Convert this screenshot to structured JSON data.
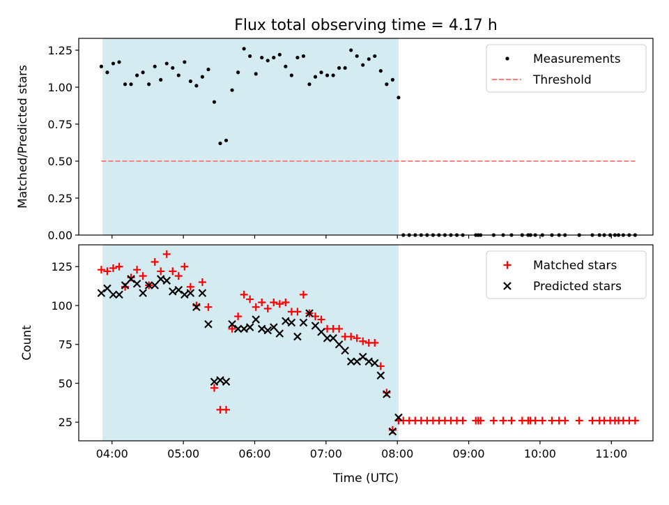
{
  "figure": {
    "title": "Flux total observing time = 4.17 h",
    "xlabel": "Time (UTC)",
    "xticks": [
      "04:00",
      "05:00",
      "06:00",
      "07:00",
      "08:00",
      "09:00",
      "10:00",
      "11:00"
    ],
    "observing_window": {
      "start": "03:52",
      "end": "08:01",
      "color": "#add8e6"
    }
  },
  "chart_data": [
    {
      "type": "scatter",
      "title": "Flux total observing time = 4.17 h",
      "xlabel": "",
      "ylabel": "Matched/Predicted stars",
      "ylim": [
        0,
        1.33
      ],
      "yticks": [
        "0.00",
        "0.25",
        "0.50",
        "0.75",
        "1.00",
        "1.25"
      ],
      "grid": false,
      "legend_position": "upper right",
      "series": [
        {
          "name": "Measurements",
          "marker": "dot",
          "color": "#000000",
          "points": [
            [
              "03:51",
              1.14
            ],
            [
              "03:56",
              1.1
            ],
            [
              "04:01",
              1.16
            ],
            [
              "04:06",
              1.17
            ],
            [
              "04:11",
              1.02
            ],
            [
              "04:16",
              1.02
            ],
            [
              "04:21",
              1.08
            ],
            [
              "04:26",
              1.1
            ],
            [
              "04:31",
              1.02
            ],
            [
              "04:36",
              1.14
            ],
            [
              "04:41",
              1.05
            ],
            [
              "04:46",
              1.16
            ],
            [
              "04:51",
              1.13
            ],
            [
              "04:56",
              1.08
            ],
            [
              "05:01",
              1.17
            ],
            [
              "05:06",
              1.04
            ],
            [
              "05:11",
              1.01
            ],
            [
              "05:16",
              1.07
            ],
            [
              "05:21",
              1.12
            ],
            [
              "05:26",
              0.9
            ],
            [
              "05:31",
              0.62
            ],
            [
              "05:36",
              0.64
            ],
            [
              "05:41",
              0.98
            ],
            [
              "05:46",
              1.1
            ],
            [
              "05:51",
              1.26
            ],
            [
              "05:56",
              1.21
            ],
            [
              "06:01",
              1.09
            ],
            [
              "06:06",
              1.2
            ],
            [
              "06:11",
              1.18
            ],
            [
              "06:16",
              1.2
            ],
            [
              "06:21",
              1.22
            ],
            [
              "06:26",
              1.14
            ],
            [
              "06:31",
              1.08
            ],
            [
              "06:36",
              1.2
            ],
            [
              "06:41",
              1.21
            ],
            [
              "06:46",
              1.02
            ],
            [
              "06:51",
              1.07
            ],
            [
              "06:56",
              1.1
            ],
            [
              "07:01",
              1.08
            ],
            [
              "07:06",
              1.08
            ],
            [
              "07:11",
              1.13
            ],
            [
              "07:16",
              1.13
            ],
            [
              "07:21",
              1.25
            ],
            [
              "07:26",
              1.21
            ],
            [
              "07:31",
              1.15
            ],
            [
              "07:36",
              1.19
            ],
            [
              "07:41",
              1.21
            ],
            [
              "07:46",
              1.11
            ],
            [
              "07:51",
              1.02
            ],
            [
              "07:56",
              1.05
            ],
            [
              "08:01",
              0.93
            ],
            [
              "08:05",
              0
            ],
            [
              "08:10",
              0
            ],
            [
              "08:15",
              0
            ],
            [
              "08:20",
              0
            ],
            [
              "08:25",
              0
            ],
            [
              "08:30",
              0
            ],
            [
              "08:35",
              0
            ],
            [
              "08:40",
              0
            ],
            [
              "08:45",
              0
            ],
            [
              "08:50",
              0
            ],
            [
              "08:55",
              0
            ],
            [
              "09:06",
              0
            ],
            [
              "09:08",
              0
            ],
            [
              "09:10",
              0
            ],
            [
              "09:21",
              0
            ],
            [
              "09:29",
              0
            ],
            [
              "09:36",
              0
            ],
            [
              "09:45",
              0
            ],
            [
              "09:50",
              0
            ],
            [
              "09:52",
              0
            ],
            [
              "09:56",
              0
            ],
            [
              "10:02",
              0
            ],
            [
              "10:10",
              0
            ],
            [
              "10:16",
              0
            ],
            [
              "10:21",
              0
            ],
            [
              "10:33",
              0
            ],
            [
              "10:44",
              0
            ],
            [
              "10:50",
              0
            ],
            [
              "10:54",
              0
            ],
            [
              "10:59",
              0
            ],
            [
              "11:03",
              0
            ],
            [
              "11:06",
              0
            ],
            [
              "11:10",
              0
            ],
            [
              "11:15",
              0
            ],
            [
              "11:20",
              0
            ]
          ]
        },
        {
          "name": "Threshold",
          "marker": "dashed-line",
          "color": "#ff7f7f",
          "points": [
            [
              "03:51",
              0.5
            ],
            [
              "11:20",
              0.5
            ]
          ]
        }
      ]
    },
    {
      "type": "scatter",
      "title": "",
      "xlabel": "Time (UTC)",
      "ylabel": "Count",
      "ylim": [
        13,
        139
      ],
      "yticks": [
        "25",
        "50",
        "75",
        "100",
        "125"
      ],
      "grid": false,
      "legend_position": "upper right",
      "series": [
        {
          "name": "Matched stars",
          "marker": "plus",
          "color": "#ff0000",
          "points": [
            [
              "03:51",
              123
            ],
            [
              "03:56",
              122
            ],
            [
              "04:01",
              124
            ],
            [
              "04:06",
              125
            ],
            [
              "04:11",
              112
            ],
            [
              "04:16",
              118
            ],
            [
              "04:21",
              123
            ],
            [
              "04:26",
              119
            ],
            [
              "04:31",
              113
            ],
            [
              "04:36",
              128
            ],
            [
              "04:41",
              122
            ],
            [
              "04:46",
              133
            ],
            [
              "04:51",
              122
            ],
            [
              "04:56",
              119
            ],
            [
              "05:01",
              125
            ],
            [
              "05:06",
              112
            ],
            [
              "05:11",
              100
            ],
            [
              "05:16",
              115
            ],
            [
              "05:21",
              99
            ],
            [
              "05:26",
              47
            ],
            [
              "05:31",
              33
            ],
            [
              "05:36",
              33
            ],
            [
              "05:41",
              85
            ],
            [
              "05:46",
              93
            ],
            [
              "05:51",
              107
            ],
            [
              "05:56",
              104
            ],
            [
              "06:01",
              99
            ],
            [
              "06:06",
              102
            ],
            [
              "06:11",
              98
            ],
            [
              "06:16",
              102
            ],
            [
              "06:21",
              101
            ],
            [
              "06:26",
              102
            ],
            [
              "06:31",
              96
            ],
            [
              "06:36",
              96
            ],
            [
              "06:41",
              107
            ],
            [
              "06:46",
              95
            ],
            [
              "06:51",
              93
            ],
            [
              "06:56",
              91
            ],
            [
              "07:01",
              85
            ],
            [
              "07:06",
              85
            ],
            [
              "07:11",
              85
            ],
            [
              "07:16",
              80
            ],
            [
              "07:21",
              80
            ],
            [
              "07:26",
              79
            ],
            [
              "07:31",
              77
            ],
            [
              "07:36",
              76
            ],
            [
              "07:41",
              76
            ],
            [
              "07:46",
              61
            ],
            [
              "07:51",
              44
            ],
            [
              "07:56",
              20
            ],
            [
              "08:01",
              26
            ],
            [
              "08:05",
              26
            ],
            [
              "08:10",
              26
            ],
            [
              "08:15",
              26
            ],
            [
              "08:20",
              26
            ],
            [
              "08:25",
              26
            ],
            [
              "08:30",
              26
            ],
            [
              "08:35",
              26
            ],
            [
              "08:40",
              26
            ],
            [
              "08:45",
              26
            ],
            [
              "08:50",
              26
            ],
            [
              "08:55",
              26
            ],
            [
              "09:06",
              26
            ],
            [
              "09:08",
              26
            ],
            [
              "09:10",
              26
            ],
            [
              "09:21",
              26
            ],
            [
              "09:29",
              26
            ],
            [
              "09:36",
              26
            ],
            [
              "09:45",
              26
            ],
            [
              "09:50",
              26
            ],
            [
              "09:52",
              26
            ],
            [
              "09:56",
              26
            ],
            [
              "10:02",
              26
            ],
            [
              "10:10",
              26
            ],
            [
              "10:16",
              26
            ],
            [
              "10:21",
              26
            ],
            [
              "10:33",
              26
            ],
            [
              "10:44",
              26
            ],
            [
              "10:50",
              26
            ],
            [
              "10:54",
              26
            ],
            [
              "10:59",
              26
            ],
            [
              "11:03",
              26
            ],
            [
              "11:06",
              26
            ],
            [
              "11:10",
              26
            ],
            [
              "11:15",
              26
            ],
            [
              "11:20",
              26
            ]
          ]
        },
        {
          "name": "Predicted stars",
          "marker": "x",
          "color": "#000000",
          "points": [
            [
              "03:51",
              108
            ],
            [
              "03:56",
              111
            ],
            [
              "04:01",
              107
            ],
            [
              "04:06",
              107
            ],
            [
              "04:11",
              113
            ],
            [
              "04:16",
              117
            ],
            [
              "04:21",
              114
            ],
            [
              "04:26",
              108
            ],
            [
              "04:31",
              113
            ],
            [
              "04:36",
              113
            ],
            [
              "04:41",
              117
            ],
            [
              "04:46",
              116
            ],
            [
              "04:51",
              109
            ],
            [
              "04:56",
              110
            ],
            [
              "05:01",
              107
            ],
            [
              "05:06",
              108
            ],
            [
              "05:11",
              99
            ],
            [
              "05:16",
              108
            ],
            [
              "05:21",
              88
            ],
            [
              "05:26",
              51
            ],
            [
              "05:31",
              52
            ],
            [
              "05:36",
              51
            ],
            [
              "05:41",
              88
            ],
            [
              "05:46",
              85
            ],
            [
              "05:51",
              85
            ],
            [
              "05:56",
              86
            ],
            [
              "06:01",
              91
            ],
            [
              "06:06",
              85
            ],
            [
              "06:11",
              84
            ],
            [
              "06:16",
              86
            ],
            [
              "06:21",
              82
            ],
            [
              "06:26",
              90
            ],
            [
              "06:31",
              89
            ],
            [
              "06:36",
              80
            ],
            [
              "06:41",
              89
            ],
            [
              "06:46",
              95
            ],
            [
              "06:51",
              87
            ],
            [
              "06:56",
              83
            ],
            [
              "07:01",
              79
            ],
            [
              "07:06",
              79
            ],
            [
              "07:11",
              75
            ],
            [
              "07:16",
              71
            ],
            [
              "07:21",
              64
            ],
            [
              "07:26",
              64
            ],
            [
              "07:31",
              67
            ],
            [
              "07:36",
              64
            ],
            [
              "07:41",
              63
            ],
            [
              "07:46",
              55
            ],
            [
              "07:51",
              43
            ],
            [
              "07:56",
              19
            ],
            [
              "08:01",
              28
            ]
          ]
        }
      ]
    }
  ]
}
